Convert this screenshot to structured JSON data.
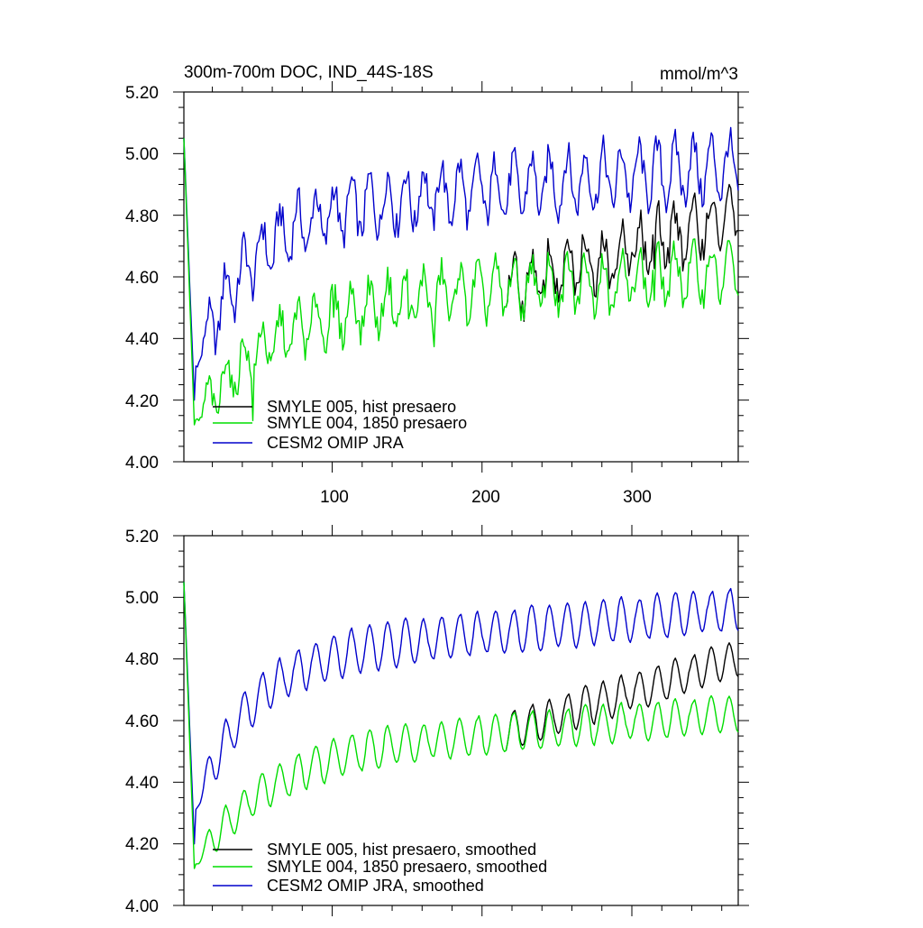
{
  "colors": {
    "black": "#000000",
    "green": "#00dd00",
    "blue": "#0000cc"
  },
  "chart_data": [
    {
      "type": "line",
      "title": "300m-700m DOC, IND_44S-18S",
      "units": "mmol/m^3",
      "xlim": [
        1,
        371
      ],
      "ylim": [
        4.0,
        5.2
      ],
      "yticks": [
        4.0,
        4.2,
        4.4,
        4.6,
        4.8,
        5.0,
        5.2
      ],
      "ytick_labels": [
        "4.00",
        "4.20",
        "4.40",
        "4.60",
        "4.80",
        "5.00",
        "5.20"
      ],
      "xticks": [
        100,
        200,
        300
      ],
      "xtick_labels": [
        "100",
        "200",
        "300"
      ],
      "grid": false,
      "legend_position": "bottom-left",
      "legend_entries": [
        "SMYLE 005, hist presaero",
        "SMYLE 004, 1850 presaero",
        "CESM2 OMIP JRA"
      ],
      "series_style": [
        "black",
        "green",
        "blue"
      ],
      "mode": "raw"
    },
    {
      "type": "line",
      "xlim": [
        1,
        371
      ],
      "ylim": [
        4.0,
        5.2
      ],
      "yticks": [
        4.0,
        4.2,
        4.4,
        4.6,
        4.8,
        5.0,
        5.2
      ],
      "ytick_labels": [
        "4.00",
        "4.20",
        "4.40",
        "4.60",
        "4.80",
        "5.00",
        "5.20"
      ],
      "xticks": [
        100,
        200,
        300
      ],
      "xtick_labels": [],
      "grid": false,
      "legend_position": "bottom-left",
      "legend_entries": [
        "SMYLE 005, hist presaero, smoothed",
        "SMYLE 004, 1850 presaero, smoothed",
        "CESM2 OMIP JRA, smoothed"
      ],
      "series_style": [
        "black",
        "green",
        "blue"
      ],
      "mode": "smoothed"
    }
  ]
}
